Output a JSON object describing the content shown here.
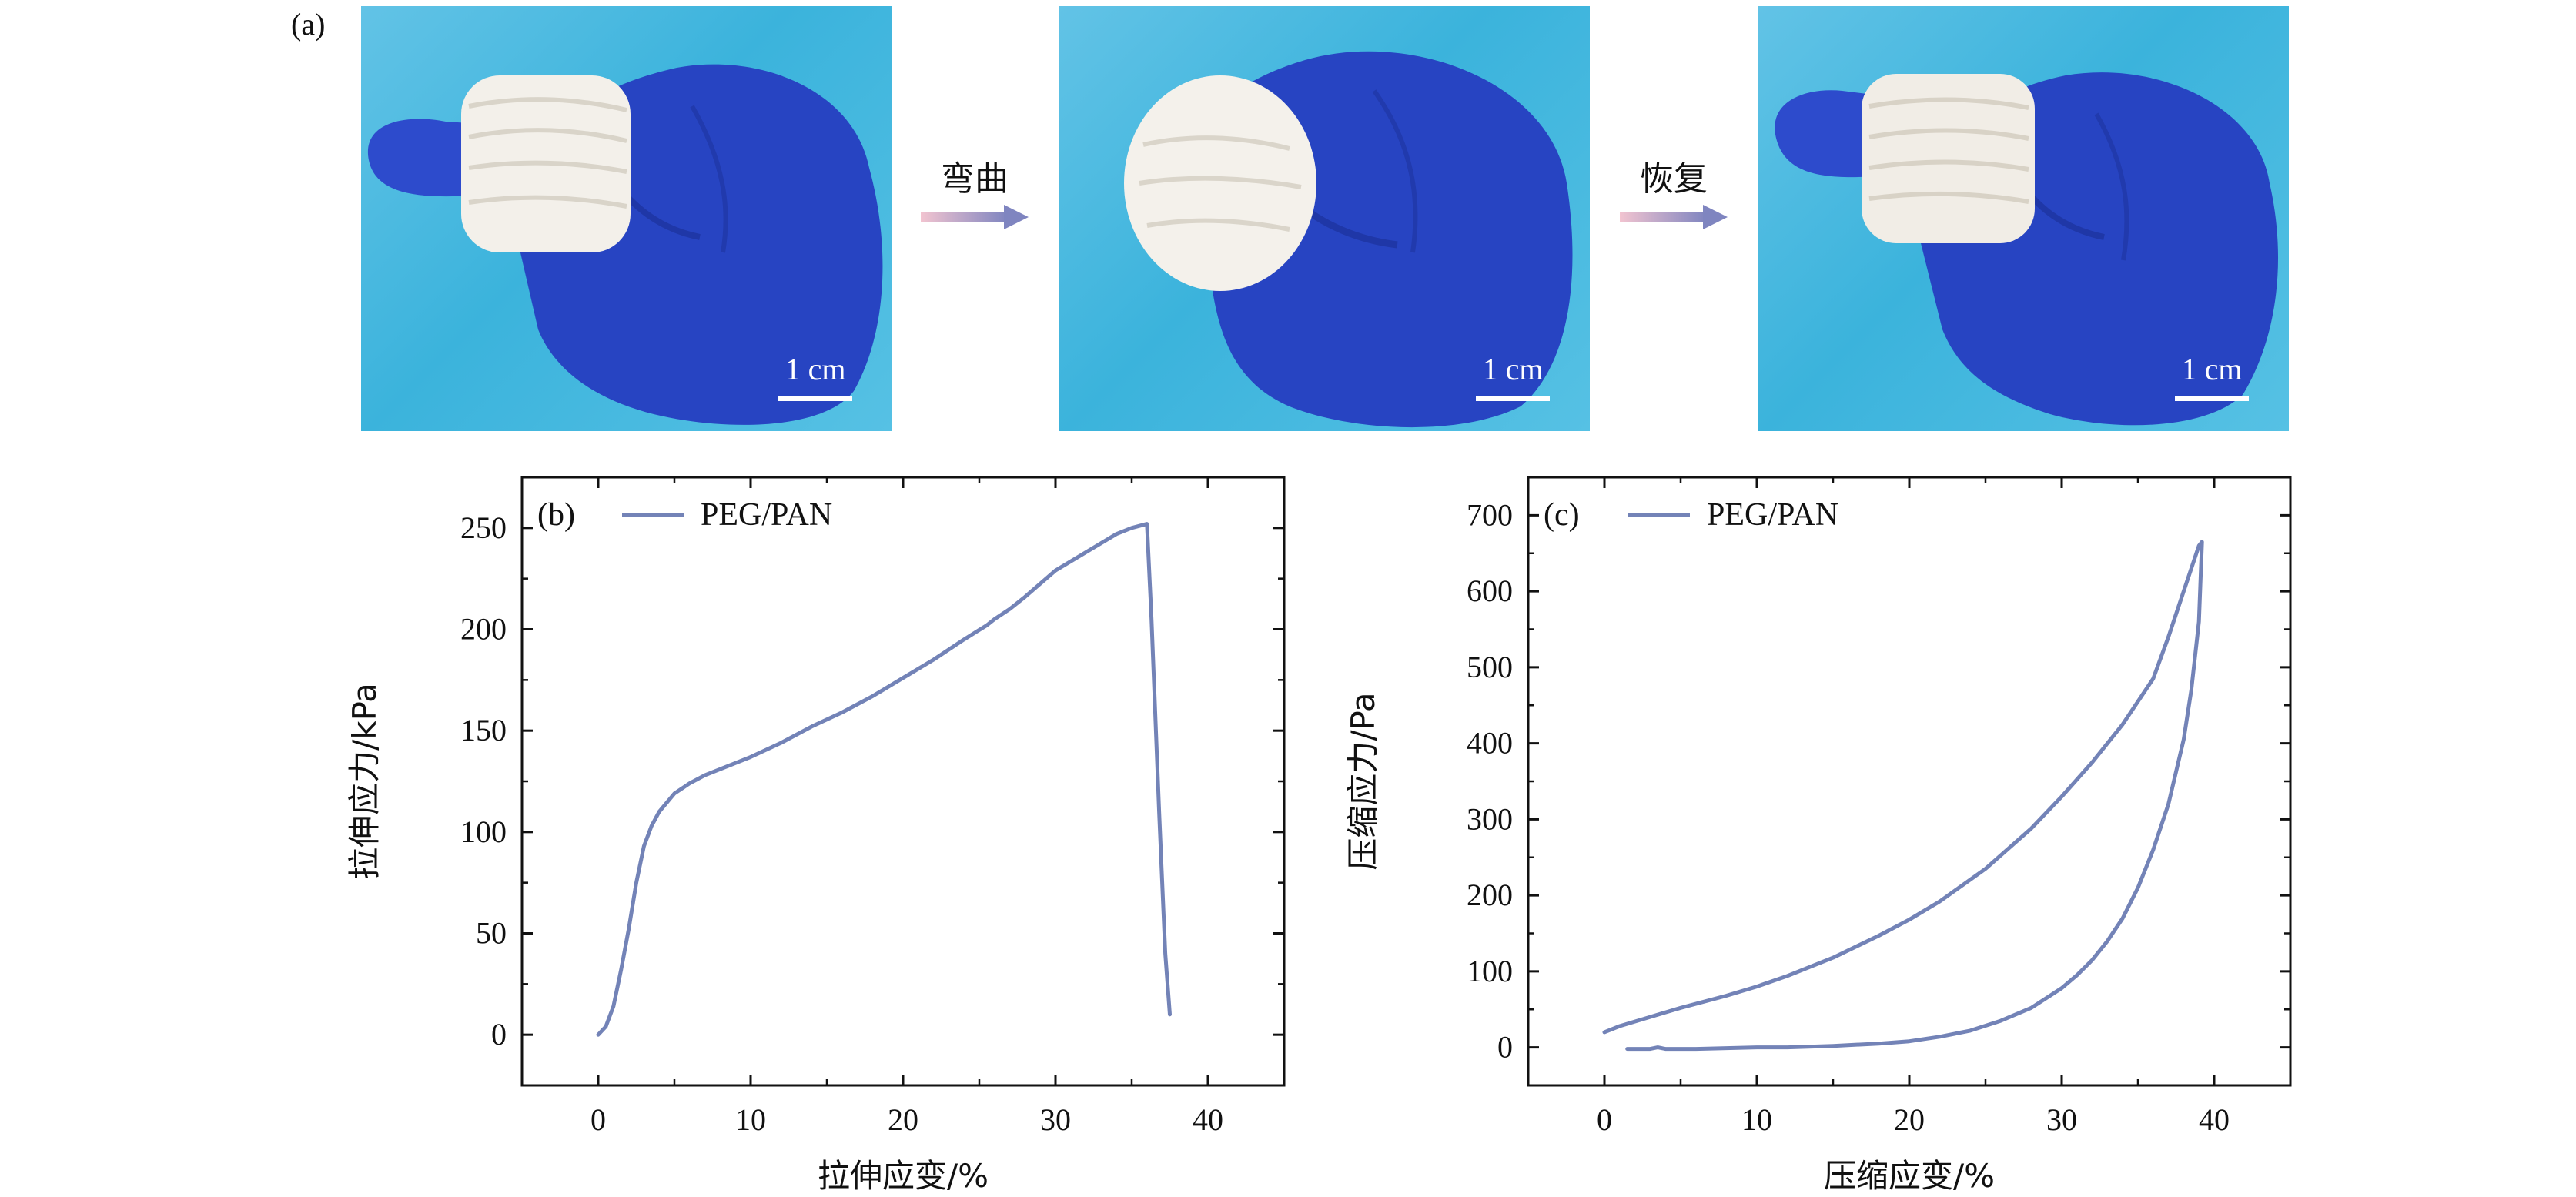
{
  "figure": {
    "panel_a_label": "(a)",
    "arrows": [
      {
        "label": "弯曲"
      },
      {
        "label": "恢复"
      }
    ],
    "scale_label": "1 cm",
    "colors": {
      "series": "#7383b7",
      "arrow_start": "#f2c4d0",
      "arrow_end": "#7f85c0",
      "glove": "#2845c4",
      "background": "#49bbe2"
    }
  },
  "chart_data": [
    {
      "type": "line",
      "panel_label": "(b)",
      "xlabel": "拉伸应变/%",
      "ylabel": "拉伸应力/kPa",
      "xlim": [
        -5,
        45
      ],
      "ylim": [
        -25,
        275
      ],
      "xticks": [
        0,
        10,
        20,
        30,
        40
      ],
      "yticks": [
        0,
        50,
        100,
        150,
        200,
        250
      ],
      "legend": "top-left",
      "series": [
        {
          "name": "PEG/PAN",
          "x": [
            0,
            0.5,
            1,
            1.5,
            2,
            2.5,
            3,
            3.5,
            4,
            5,
            6,
            7,
            8,
            10,
            12,
            14,
            16,
            18,
            20,
            22,
            24,
            25.5,
            26,
            27,
            28,
            30,
            32,
            34,
            35,
            36,
            36.3,
            36.8,
            37.2,
            37.5
          ],
          "y": [
            0,
            4,
            14,
            32,
            52,
            75,
            93,
            103,
            110,
            119,
            124,
            128,
            131,
            137,
            144,
            152,
            159,
            167,
            176,
            185,
            195,
            202,
            205,
            210,
            216,
            229,
            238,
            247,
            250,
            252,
            205,
            110,
            40,
            10
          ]
        }
      ]
    },
    {
      "type": "line",
      "panel_label": "(c)",
      "xlabel": "压缩应变/%",
      "ylabel": "压缩应力/Pa",
      "xlim": [
        -5,
        45
      ],
      "ylim": [
        -50,
        750
      ],
      "xticks": [
        0,
        10,
        20,
        30,
        40
      ],
      "yticks": [
        0,
        100,
        200,
        300,
        400,
        500,
        600,
        700
      ],
      "legend": "top-left",
      "series": [
        {
          "name": "PEG/PAN",
          "x": [
            0,
            1,
            3,
            5,
            8,
            10,
            12,
            15,
            18,
            20,
            22,
            25,
            28,
            30,
            32,
            34,
            36,
            37,
            38,
            39,
            39.2,
            39,
            38.5,
            38,
            37,
            36,
            35,
            34,
            33,
            32,
            31,
            30,
            28,
            26,
            24,
            22,
            20,
            18,
            15,
            12,
            10,
            8,
            6,
            4,
            3.5,
            3,
            2,
            1.5
          ],
          "y": [
            20,
            28,
            40,
            52,
            68,
            80,
            94,
            118,
            147,
            168,
            192,
            235,
            288,
            330,
            375,
            425,
            485,
            540,
            600,
            660,
            665,
            560,
            470,
            405,
            320,
            260,
            210,
            170,
            140,
            115,
            95,
            78,
            52,
            35,
            22,
            14,
            8,
            5,
            2,
            0,
            0,
            -1,
            -2,
            -2,
            0,
            -2,
            -2,
            -2
          ]
        }
      ]
    }
  ]
}
